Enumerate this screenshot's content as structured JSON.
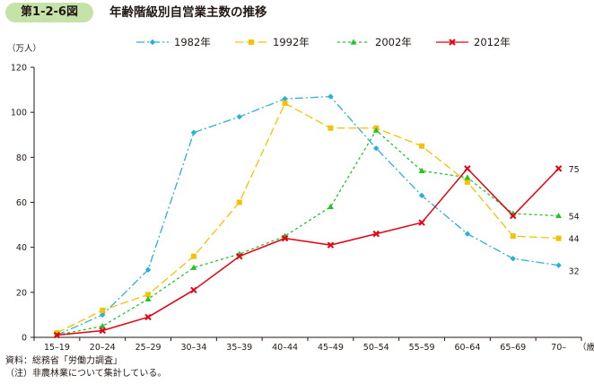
{
  "figure": {
    "label": "第1-2-6図",
    "title": "年齢階級別自営業主数の推移"
  },
  "notes": {
    "source": "資料：総務省「労働力調査」",
    "note": "（注）非農林業について集計している。"
  },
  "chart_data": {
    "type": "line",
    "title": "年齢階級別自営業主数の推移",
    "xlabel": "（歳）",
    "ylabel": "（万人）",
    "ylim": [
      0,
      120
    ],
    "yticks": [
      0,
      20,
      40,
      60,
      80,
      100,
      120
    ],
    "grid": false,
    "legend": "top",
    "categories": [
      "15–19",
      "20–24",
      "25–29",
      "30–34",
      "35–39",
      "40–44",
      "45–49",
      "50–54",
      "55–59",
      "60–64",
      "65–69",
      "70–"
    ],
    "series": [
      {
        "name": "1982年",
        "color": "#2bb0d8",
        "dash": "dashdot",
        "marker": "diamond",
        "values": [
          1,
          10,
          30,
          91,
          98,
          106,
          107,
          84,
          63,
          46,
          35,
          32
        ]
      },
      {
        "name": "1992年",
        "color": "#f5c200",
        "dash": "dash",
        "marker": "square",
        "values": [
          2,
          12,
          19,
          36,
          60,
          104,
          93,
          93,
          85,
          69,
          45,
          44
        ]
      },
      {
        "name": "2002年",
        "color": "#22c22a",
        "dash": "dot",
        "marker": "triangle",
        "values": [
          1,
          5,
          17,
          31,
          37,
          45,
          58,
          92,
          74,
          71,
          55,
          54
        ]
      },
      {
        "name": "2012年",
        "color": "#e60012",
        "dash": "solid",
        "marker": "x",
        "values": [
          1,
          3,
          9,
          21,
          36,
          44,
          41,
          46,
          51,
          75,
          54,
          75
        ]
      }
    ],
    "end_labels": [
      "32",
      "44",
      "54",
      "75"
    ]
  }
}
